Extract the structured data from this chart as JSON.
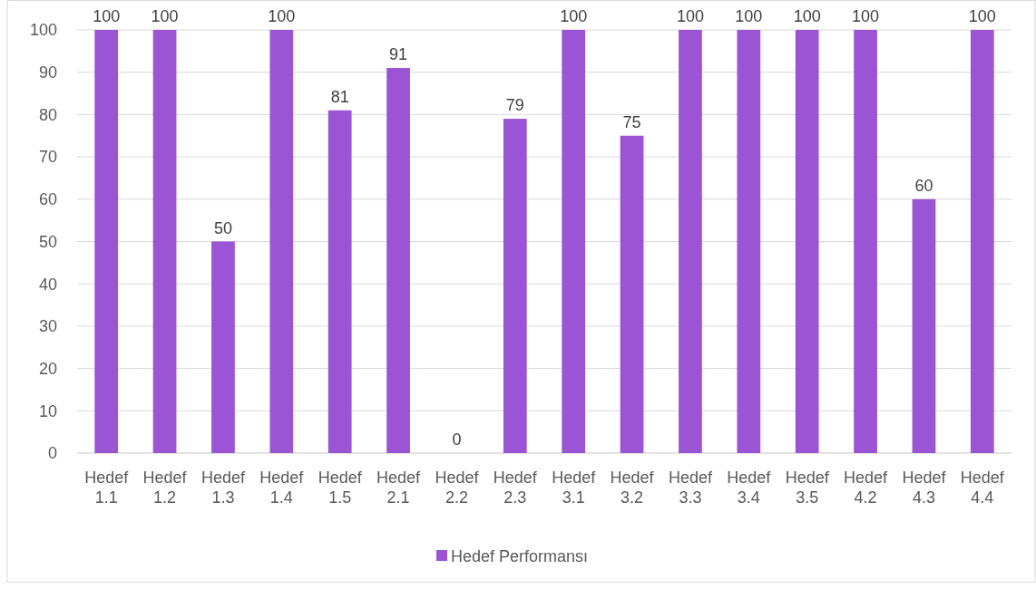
{
  "chart_data": {
    "type": "bar",
    "categories": [
      "Hedef 1.1",
      "Hedef 1.2",
      "Hedef 1.3",
      "Hedef 1.4",
      "Hedef 1.5",
      "Hedef 2.1",
      "Hedef 2.2",
      "Hedef 2.3",
      "Hedef 3.1",
      "Hedef 3.2",
      "Hedef 3.3",
      "Hedef 3.4",
      "Hedef 3.5",
      "Hedef 4.2",
      "Hedef 4.3",
      "Hedef 4.4"
    ],
    "series": [
      {
        "name": "Hedef Performansı",
        "color": "#9b55d4",
        "values": [
          100,
          100,
          50,
          100,
          81,
          91,
          0,
          79,
          100,
          75,
          100,
          100,
          100,
          100,
          60,
          100
        ]
      }
    ],
    "ylim": [
      0,
      100
    ],
    "yticks": [
      0,
      10,
      20,
      30,
      40,
      50,
      60,
      70,
      80,
      90,
      100
    ],
    "grid": "y",
    "legend": "bottom",
    "data_labels": true
  }
}
